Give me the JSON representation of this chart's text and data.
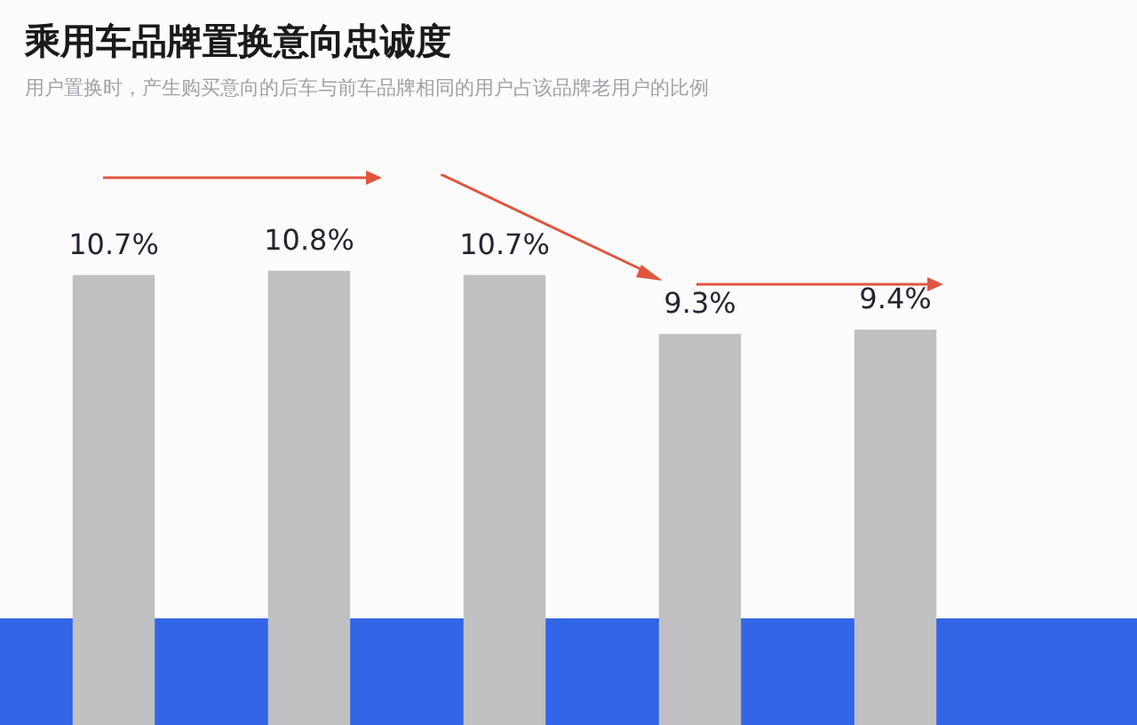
{
  "chart_data": {
    "type": "bar",
    "title": "乘用车品牌置换意向忠诚度",
    "subtitle": "用户置换时，产生购买意向的后车与前车品牌相同的用户占该品牌老用户的比例",
    "categories": [
      null,
      null,
      null,
      null,
      null
    ],
    "values": [
      10.7,
      10.8,
      10.7,
      9.3,
      9.4
    ],
    "value_labels": [
      "10.7%",
      "10.8%",
      "10.7%",
      "9.3%",
      "9.4%"
    ],
    "color": "#c0c0c3"
  }
}
